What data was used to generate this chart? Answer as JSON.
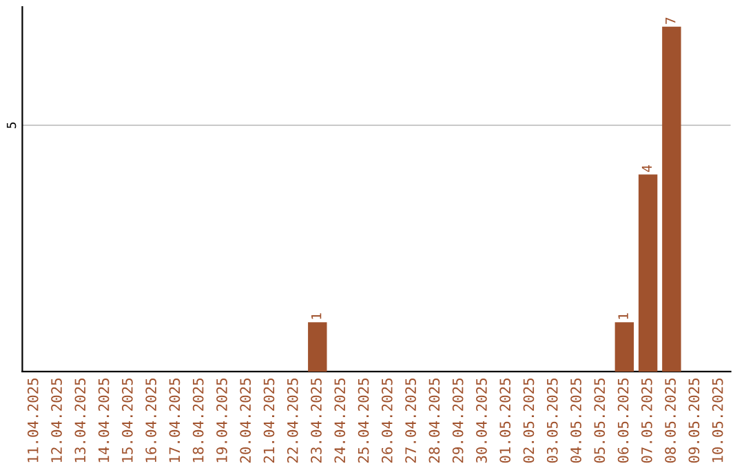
{
  "chart_data": {
    "type": "bar",
    "categories": [
      "11.04.2025",
      "12.04.2025",
      "13.04.2025",
      "14.04.2025",
      "15.04.2025",
      "16.04.2025",
      "17.04.2025",
      "18.04.2025",
      "19.04.2025",
      "20.04.2025",
      "21.04.2025",
      "22.04.2025",
      "23.04.2025",
      "24.04.2025",
      "25.04.2025",
      "26.04.2025",
      "27.04.2025",
      "28.04.2025",
      "29.04.2025",
      "30.04.2025",
      "01.05.2025",
      "02.05.2025",
      "03.05.2025",
      "04.05.2025",
      "05.05.2025",
      "06.05.2025",
      "07.05.2025",
      "08.05.2025",
      "09.05.2025",
      "10.05.2025"
    ],
    "values": [
      null,
      null,
      null,
      null,
      null,
      null,
      null,
      null,
      null,
      null,
      null,
      null,
      1,
      null,
      null,
      null,
      null,
      null,
      null,
      null,
      null,
      null,
      null,
      null,
      null,
      1,
      4,
      7,
      null,
      null
    ],
    "data_labels": true,
    "color": "#a0522d",
    "ylim": [
      0,
      7.4
    ],
    "yticks": [
      5
    ],
    "grid": "y"
  }
}
